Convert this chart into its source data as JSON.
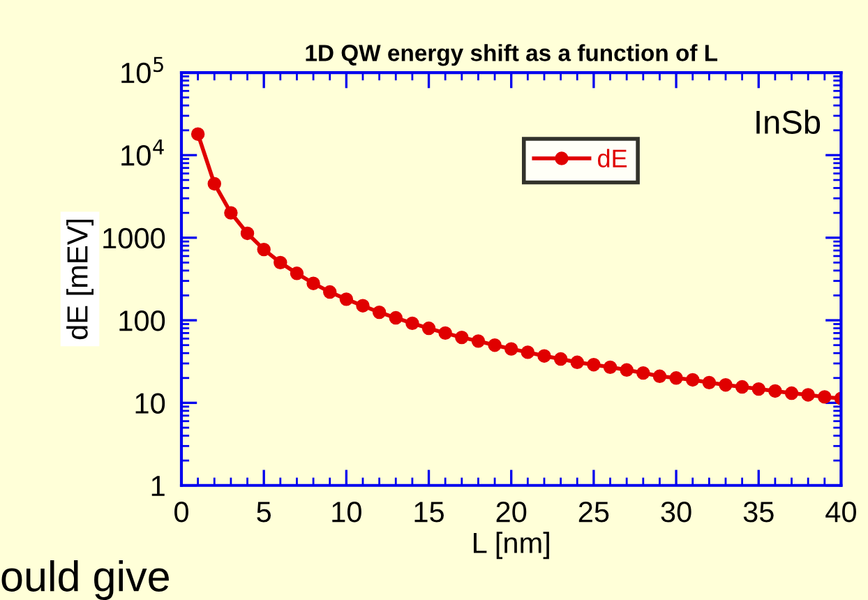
{
  "chart_data": {
    "type": "line",
    "title": "1D QW energy shift as a function of L",
    "xlabel": "L [nm]",
    "ylabel": "dE [mEV]",
    "x": [
      1,
      2,
      3,
      4,
      5,
      6,
      7,
      8,
      9,
      10,
      11,
      12,
      13,
      14,
      15,
      16,
      17,
      18,
      19,
      20,
      21,
      22,
      23,
      24,
      25,
      26,
      27,
      28,
      29,
      30,
      31,
      32,
      33,
      34,
      35,
      36,
      37,
      38,
      39,
      40
    ],
    "series": [
      {
        "name": "dE",
        "color": "#e00000",
        "values": [
          18000,
          4500,
          2000,
          1130,
          720,
          500,
          370,
          280,
          220,
          180,
          150,
          125,
          107,
          92,
          80,
          70,
          62,
          56,
          50,
          45,
          41,
          37,
          34,
          31,
          29,
          27,
          25,
          23,
          21,
          20,
          19,
          17.6,
          16.5,
          15.6,
          14.7,
          13.9,
          13.1,
          12.5,
          11.8,
          11.3
        ]
      }
    ],
    "log": "y",
    "xlim": [
      0,
      40
    ],
    "ylim": [
      1,
      100000
    ],
    "xticks": [
      0,
      5,
      10,
      15,
      20,
      25,
      30,
      35,
      40
    ],
    "yticks": [
      1,
      10,
      100,
      1000,
      {
        "value": 10000,
        "label": "10$^{4}$"
      },
      {
        "value": 100000,
        "label": "10$^{5}$"
      }
    ],
    "marker": "circle",
    "line_style": "solid",
    "grid": false,
    "legend": "top right",
    "annotations": [
      "InSb",
      "ould give"
    ]
  }
}
